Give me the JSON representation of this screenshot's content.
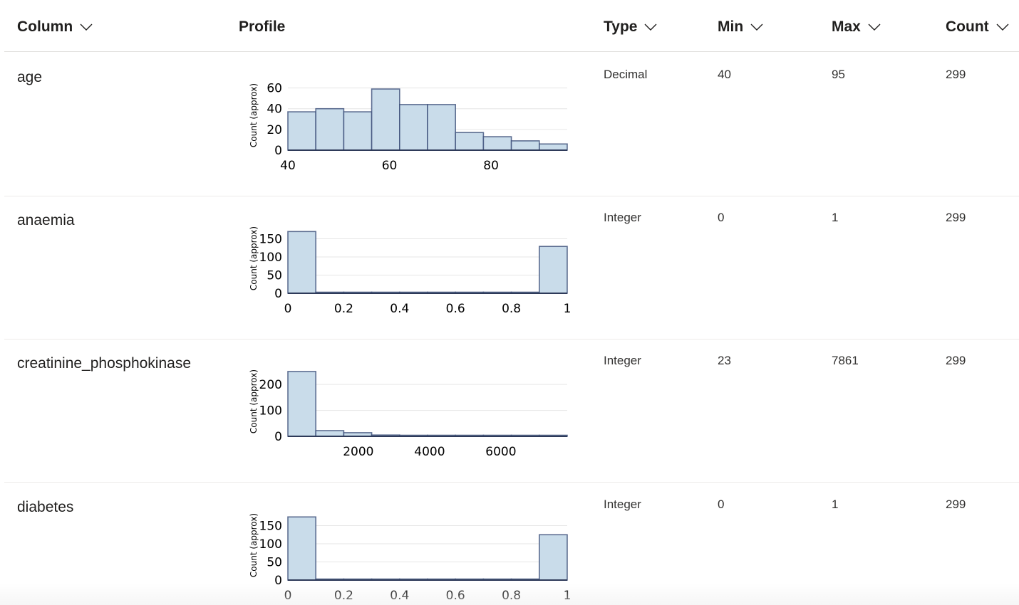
{
  "header": {
    "column_label": "Column",
    "profile_label": "Profile",
    "type_label": "Type",
    "min_label": "Min",
    "max_label": "Max",
    "count_label": "Count"
  },
  "rows": [
    {
      "name": "age",
      "type": "Decimal",
      "min": "40",
      "max": "95",
      "count": "299"
    },
    {
      "name": "anaemia",
      "type": "Integer",
      "min": "0",
      "max": "1",
      "count": "299"
    },
    {
      "name": "creatinine_phosphokinase",
      "type": "Integer",
      "min": "23",
      "max": "7861",
      "count": "299"
    },
    {
      "name": "diabetes",
      "type": "Integer",
      "min": "0",
      "max": "1",
      "count": "299"
    }
  ],
  "colors": {
    "bar_fill": "#c9dcea",
    "bar_stroke": "#3b4d78",
    "grid": "#e6e6e6",
    "header_border": "#e1dfdd"
  },
  "chart_data": [
    {
      "type": "bar",
      "column": "age",
      "ylabel": "Count (approx)",
      "xlim": [
        40,
        95
      ],
      "ylim": [
        0,
        70
      ],
      "yticks": [
        0,
        20,
        40,
        60
      ],
      "xticks": [
        40,
        60,
        80
      ],
      "bin_edges": [
        40,
        45.5,
        51,
        56.5,
        62,
        67.5,
        73,
        78.5,
        84,
        89.5,
        95
      ],
      "values": [
        37,
        40,
        37,
        59,
        44,
        44,
        17,
        13,
        9,
        6
      ]
    },
    {
      "type": "bar",
      "column": "anaemia",
      "ylabel": "Count (approx)",
      "xlim": [
        0,
        1
      ],
      "ylim": [
        0,
        200
      ],
      "yticks": [
        0,
        50,
        100,
        150
      ],
      "xticks": [
        0,
        0.2,
        0.4,
        0.6,
        0.8,
        1
      ],
      "bin_edges": [
        0,
        0.1,
        0.2,
        0.3,
        0.4,
        0.5,
        0.6,
        0.7,
        0.8,
        0.9,
        1
      ],
      "values": [
        170,
        0,
        0,
        0,
        0,
        0,
        0,
        0,
        0,
        129
      ]
    },
    {
      "type": "bar",
      "column": "creatinine_phosphokinase",
      "ylabel": "Count (approx)",
      "xlim": [
        23,
        7861
      ],
      "ylim": [
        0,
        280
      ],
      "yticks": [
        0,
        100,
        200
      ],
      "xticks": [
        2000,
        4000,
        6000
      ],
      "bin_edges": [
        23,
        806.8,
        1590.6,
        2374.4,
        3158.2,
        3942,
        4725.8,
        5509.6,
        6293.4,
        7077.2,
        7861
      ],
      "values": [
        250,
        22,
        14,
        5,
        1,
        4,
        1,
        1,
        1,
        1
      ]
    },
    {
      "type": "bar",
      "column": "diabetes",
      "ylabel": "Count (approx)",
      "xlim": [
        0,
        1
      ],
      "ylim": [
        0,
        200
      ],
      "yticks": [
        0,
        50,
        100,
        150
      ],
      "xticks": [
        0,
        0.2,
        0.4,
        0.6,
        0.8,
        1
      ],
      "bin_edges": [
        0,
        0.1,
        0.2,
        0.3,
        0.4,
        0.5,
        0.6,
        0.7,
        0.8,
        0.9,
        1
      ],
      "values": [
        174,
        0,
        0,
        0,
        0,
        0,
        0,
        0,
        0,
        125
      ]
    }
  ]
}
